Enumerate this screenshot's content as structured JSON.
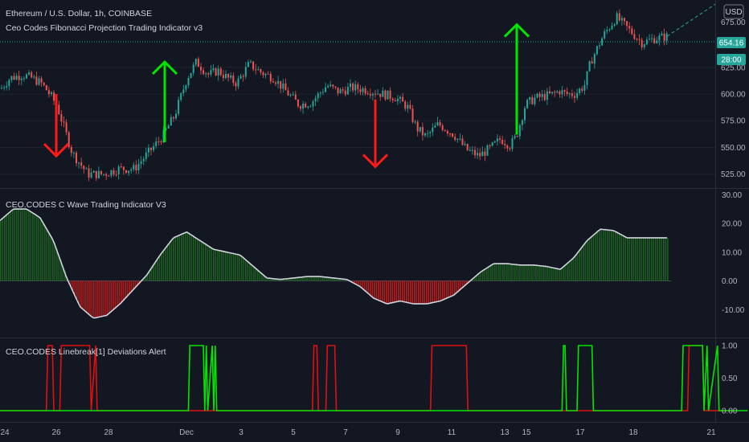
{
  "header": {
    "symbol_title": "Ethereum / U.S. Dollar, 1h, COINBASE",
    "price_indicator_label": "Ceo Codes Fibonacci Projection Trading Indicator v3",
    "currency_button": "USD"
  },
  "colors": {
    "background": "#131722",
    "candle_up": "#26a69a",
    "candle_down": "#ef5350",
    "arrow_up": "#00e600",
    "arrow_down": "#ff1a1a",
    "wave_positive": "#1b5e20",
    "wave_negative": "#b71c1c",
    "wave_line": "#d1d4dc",
    "alert_green": "#00e600",
    "alert_red": "#e01010",
    "price_badge": "#26a69a"
  },
  "price_pane": {
    "current_price_label": "654.16",
    "countdown_label": "28:00",
    "axis_top_partial": "675.00",
    "y_ticks": [
      "625.00",
      "600.00",
      "575.00",
      "550.00",
      "525.00"
    ],
    "chart_data": {
      "type": "line",
      "title": "Ethereum / U.S. Dollar, 1h, COINBASE",
      "xlabel": "",
      "ylabel": "",
      "x_ticks": [
        "24",
        "26",
        "28",
        "Dec",
        "3",
        "5",
        "7",
        "9",
        "11",
        "13",
        "15",
        "17",
        "18",
        "21"
      ],
      "ylim": [
        512,
        688
      ],
      "x": [
        0.0,
        0.3,
        0.7,
        1.0,
        1.3,
        1.5,
        1.8,
        2.3,
        2.8,
        3.3,
        3.8,
        4.3,
        4.6,
        5.2,
        5.6,
        6.0,
        6.3,
        6.7,
        7.0,
        7.3,
        7.6,
        8.0,
        8.4,
        8.8,
        9.2,
        9.6,
        10.0,
        10.5,
        10.9,
        11.3,
        11.8,
        12.3,
        12.7,
        13.1,
        13.4,
        13.7,
        14.1,
        14.6,
        15.0,
        15.4,
        15.8,
        16.1,
        16.4,
        16.6,
        16.9,
        17.2,
        17.5,
        17.8,
        18.0,
        18.2,
        18.5,
        18.8,
        19.0
      ],
      "close": [
        605,
        615,
        618,
        615,
        610,
        603,
        590,
        545,
        525,
        525,
        530,
        530,
        540,
        560,
        580,
        615,
        630,
        618,
        622,
        615,
        610,
        628,
        620,
        615,
        602,
        590,
        592,
        608,
        602,
        606,
        604,
        600,
        597,
        588,
        568,
        560,
        572,
        562,
        548,
        542,
        550,
        558,
        552,
        560,
        590,
        596,
        598,
        600,
        603,
        600,
        600,
        608,
        630
      ],
      "close_tail": [
        655,
        672,
        660,
        648,
        652,
        654
      ]
    },
    "arrows": [
      {
        "direction": "down",
        "x": 2.2,
        "from": 600,
        "to": 542
      },
      {
        "direction": "up",
        "x": 6.1,
        "from": 555,
        "to": 630
      },
      {
        "direction": "down",
        "x": 14.0,
        "from": 595,
        "to": 532
      },
      {
        "direction": "up",
        "x": 19.0,
        "from": 562,
        "to": 665
      }
    ]
  },
  "wave_pane": {
    "label": "CEO.CODES C Wave Trading Indicator V3",
    "y_ticks": [
      "30.00",
      "20.00",
      "10.00",
      "0.00",
      "-10.00"
    ],
    "chart_data": {
      "type": "area",
      "title": "CEO.CODES C Wave Trading Indicator V3",
      "xlabel": "",
      "ylabel": "",
      "ylim": [
        -18,
        30
      ],
      "x": [
        0.0,
        0.5,
        1.0,
        1.5,
        2.0,
        2.5,
        3.0,
        3.5,
        4.0,
        4.5,
        5.0,
        5.5,
        6.0,
        6.5,
        7.0,
        7.5,
        8.0,
        8.5,
        9.0,
        9.5,
        10.0,
        10.5,
        11.0,
        11.5,
        12.0,
        12.5,
        13.0,
        13.5,
        14.0,
        14.5,
        15.0,
        15.5,
        16.0,
        16.5,
        17.0,
        17.5,
        18.0,
        18.5,
        19.0,
        19.5,
        20.0,
        20.5,
        21.0,
        21.5,
        22.0,
        22.5,
        23.0,
        23.5,
        24.0,
        24.5,
        25.0
      ],
      "values": [
        21,
        25,
        25,
        22,
        14,
        1,
        -9,
        -13,
        -12,
        -8,
        -3,
        2,
        9,
        15,
        17,
        14,
        11,
        10,
        9,
        5,
        1,
        0.5,
        1,
        1.5,
        1.5,
        1,
        0.5,
        -2,
        -6,
        -8,
        -7,
        -8,
        -8,
        -7,
        -5,
        -1,
        3,
        6,
        6,
        5.5,
        5.5,
        5,
        4,
        8,
        14,
        18,
        17.5,
        15,
        15,
        15,
        15
      ]
    }
  },
  "alert_pane": {
    "label": "CEO.CODES Linebreak[1] Deviations Alert",
    "y_ticks": [
      "1.00",
      "0.50",
      "0.00"
    ],
    "chart_data": {
      "type": "line",
      "title": "CEO.CODES Linebreak[1] Deviations Alert",
      "xlabel": "",
      "ylabel": "",
      "ylim": [
        -0.1,
        1.1
      ],
      "x_ticks": [
        "24",
        "26",
        "28",
        "Dec",
        "3",
        "5",
        "7",
        "9",
        "11",
        "13",
        "15",
        "17",
        "18",
        "21"
      ],
      "series": [
        {
          "x": [
            0.0,
            1.55,
            1.6,
            1.75,
            1.8,
            2.0,
            2.05,
            3.0,
            3.05,
            3.2,
            3.25,
            10.45,
            10.5,
            10.6,
            10.65,
            10.9,
            10.95,
            11.2,
            11.25,
            14.4,
            14.45,
            15.6,
            15.65,
            23.0,
            23.05,
            23.5,
            23.55,
            24.5
          ],
          "values": [
            0,
            0,
            1,
            1,
            0,
            0,
            1,
            1,
            0,
            1,
            0,
            0,
            1,
            1,
            0,
            0,
            1,
            1,
            0,
            0,
            1,
            1,
            0,
            0,
            1,
            1,
            0,
            0
          ]
        },
        {
          "x": [
            0.0,
            6.3,
            6.35,
            6.8,
            6.85,
            6.9,
            6.95,
            7.1,
            7.15,
            7.2,
            7.25,
            18.8,
            18.85,
            18.9,
            18.95,
            19.3,
            19.35,
            19.8,
            19.85,
            22.8,
            22.85,
            23.5,
            23.55,
            23.65,
            23.7,
            24.0,
            24.05,
            25.0
          ],
          "values": [
            0,
            0,
            1,
            1,
            0,
            1,
            0,
            1,
            0,
            1,
            0,
            0,
            1,
            1,
            0,
            0,
            1,
            1,
            0,
            0,
            1,
            1,
            0,
            1,
            0,
            1,
            0,
            0
          ]
        }
      ]
    }
  }
}
